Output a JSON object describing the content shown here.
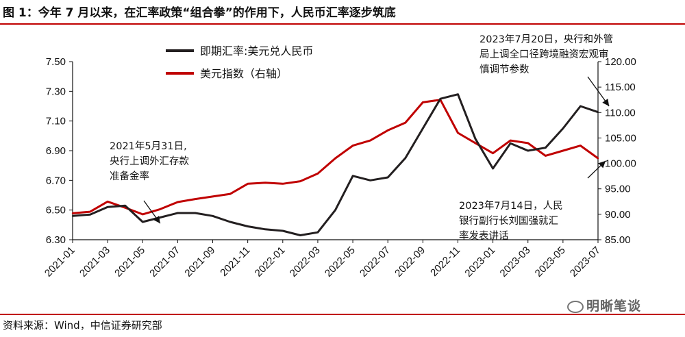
{
  "title": "图 1：今年 7 月以来，在汇率政策“组合拳”的作用下，人民币汇率逐步筑底",
  "source": "资料来源：Wind，中信证券研究部",
  "watermark": "明晰笔谈",
  "chart_data": {
    "type": "line",
    "title": "",
    "x_ticks": [
      "2021-01",
      "2021-03",
      "2021-05",
      "2021-07",
      "2021-09",
      "2021-11",
      "2022-01",
      "2022-03",
      "2022-05",
      "2022-07",
      "2022-09",
      "2022-11",
      "2023-01",
      "2023-03",
      "2023-05",
      "2023-07"
    ],
    "x_range": [
      "2021-01",
      "2023-07"
    ],
    "y_left": {
      "min": 6.3,
      "max": 7.5,
      "ticks": [
        "6.30",
        "6.50",
        "6.70",
        "6.90",
        "7.10",
        "7.30",
        "7.50"
      ]
    },
    "y_right": {
      "min": 85.0,
      "max": 120.0,
      "ticks": [
        "85.00",
        "90.00",
        "95.00",
        "100.00",
        "105.00",
        "110.00",
        "115.00",
        "120.00"
      ]
    },
    "legend_placement": "top-left",
    "grid": false,
    "series": [
      {
        "name": "即期汇率:美元兑人民币",
        "color": "#231f20",
        "axis": "left",
        "x": [
          "2021-01",
          "2021-02",
          "2021-03",
          "2021-04",
          "2021-05",
          "2021-06",
          "2021-07",
          "2021-08",
          "2021-09",
          "2021-10",
          "2021-11",
          "2021-12",
          "2022-01",
          "2022-02",
          "2022-03",
          "2022-04",
          "2022-05",
          "2022-06",
          "2022-07",
          "2022-08",
          "2022-09",
          "2022-10",
          "2022-11",
          "2022-12",
          "2023-01",
          "2023-02",
          "2023-03",
          "2023-04",
          "2023-05",
          "2023-06",
          "2023-07"
        ],
        "values": [
          6.46,
          6.47,
          6.52,
          6.53,
          6.42,
          6.45,
          6.48,
          6.48,
          6.46,
          6.42,
          6.39,
          6.37,
          6.36,
          6.33,
          6.35,
          6.5,
          6.73,
          6.7,
          6.72,
          6.85,
          7.05,
          7.25,
          7.28,
          6.98,
          6.78,
          6.95,
          6.9,
          6.92,
          7.05,
          7.2,
          7.16
        ]
      },
      {
        "name": "美元指数（右轴）",
        "color": "#c00000",
        "axis": "right",
        "x": [
          "2021-01",
          "2021-02",
          "2021-03",
          "2021-04",
          "2021-05",
          "2021-06",
          "2021-07",
          "2021-08",
          "2021-09",
          "2021-10",
          "2021-11",
          "2021-12",
          "2022-01",
          "2022-02",
          "2022-03",
          "2022-04",
          "2022-05",
          "2022-06",
          "2022-07",
          "2022-08",
          "2022-09",
          "2022-10",
          "2022-11",
          "2022-12",
          "2023-01",
          "2023-02",
          "2023-03",
          "2023-04",
          "2023-05",
          "2023-06",
          "2023-07"
        ],
        "values": [
          90.2,
          90.5,
          92.5,
          91.3,
          90.0,
          91.0,
          92.4,
          93.0,
          93.5,
          94.0,
          96.0,
          96.2,
          96.0,
          96.5,
          98.0,
          101.0,
          103.5,
          104.5,
          106.5,
          108.0,
          112.0,
          112.5,
          106.0,
          104.0,
          102.0,
          104.5,
          104.0,
          101.5,
          102.5,
          103.5,
          101.0
        ]
      }
    ],
    "annotations": [
      {
        "text_lines": [
          "2021年5月31日,",
          "央行上调外汇存款",
          "准备金率"
        ],
        "x": "2021-05-31",
        "axis": "left",
        "y": 6.41
      },
      {
        "text_lines": [
          "2023年7月20日，央行和外管",
          "局上调全口径跨境融资宏观审",
          "慎调节参数"
        ],
        "x": "2023-07-20",
        "axis": "left",
        "y": 7.2
      },
      {
        "text_lines": [
          "2023年7月14日，人民",
          "银行副行长刘国强就汇",
          "率发表讲话"
        ],
        "x": "2023-07-14",
        "axis": "right",
        "y": 100.5
      }
    ]
  }
}
